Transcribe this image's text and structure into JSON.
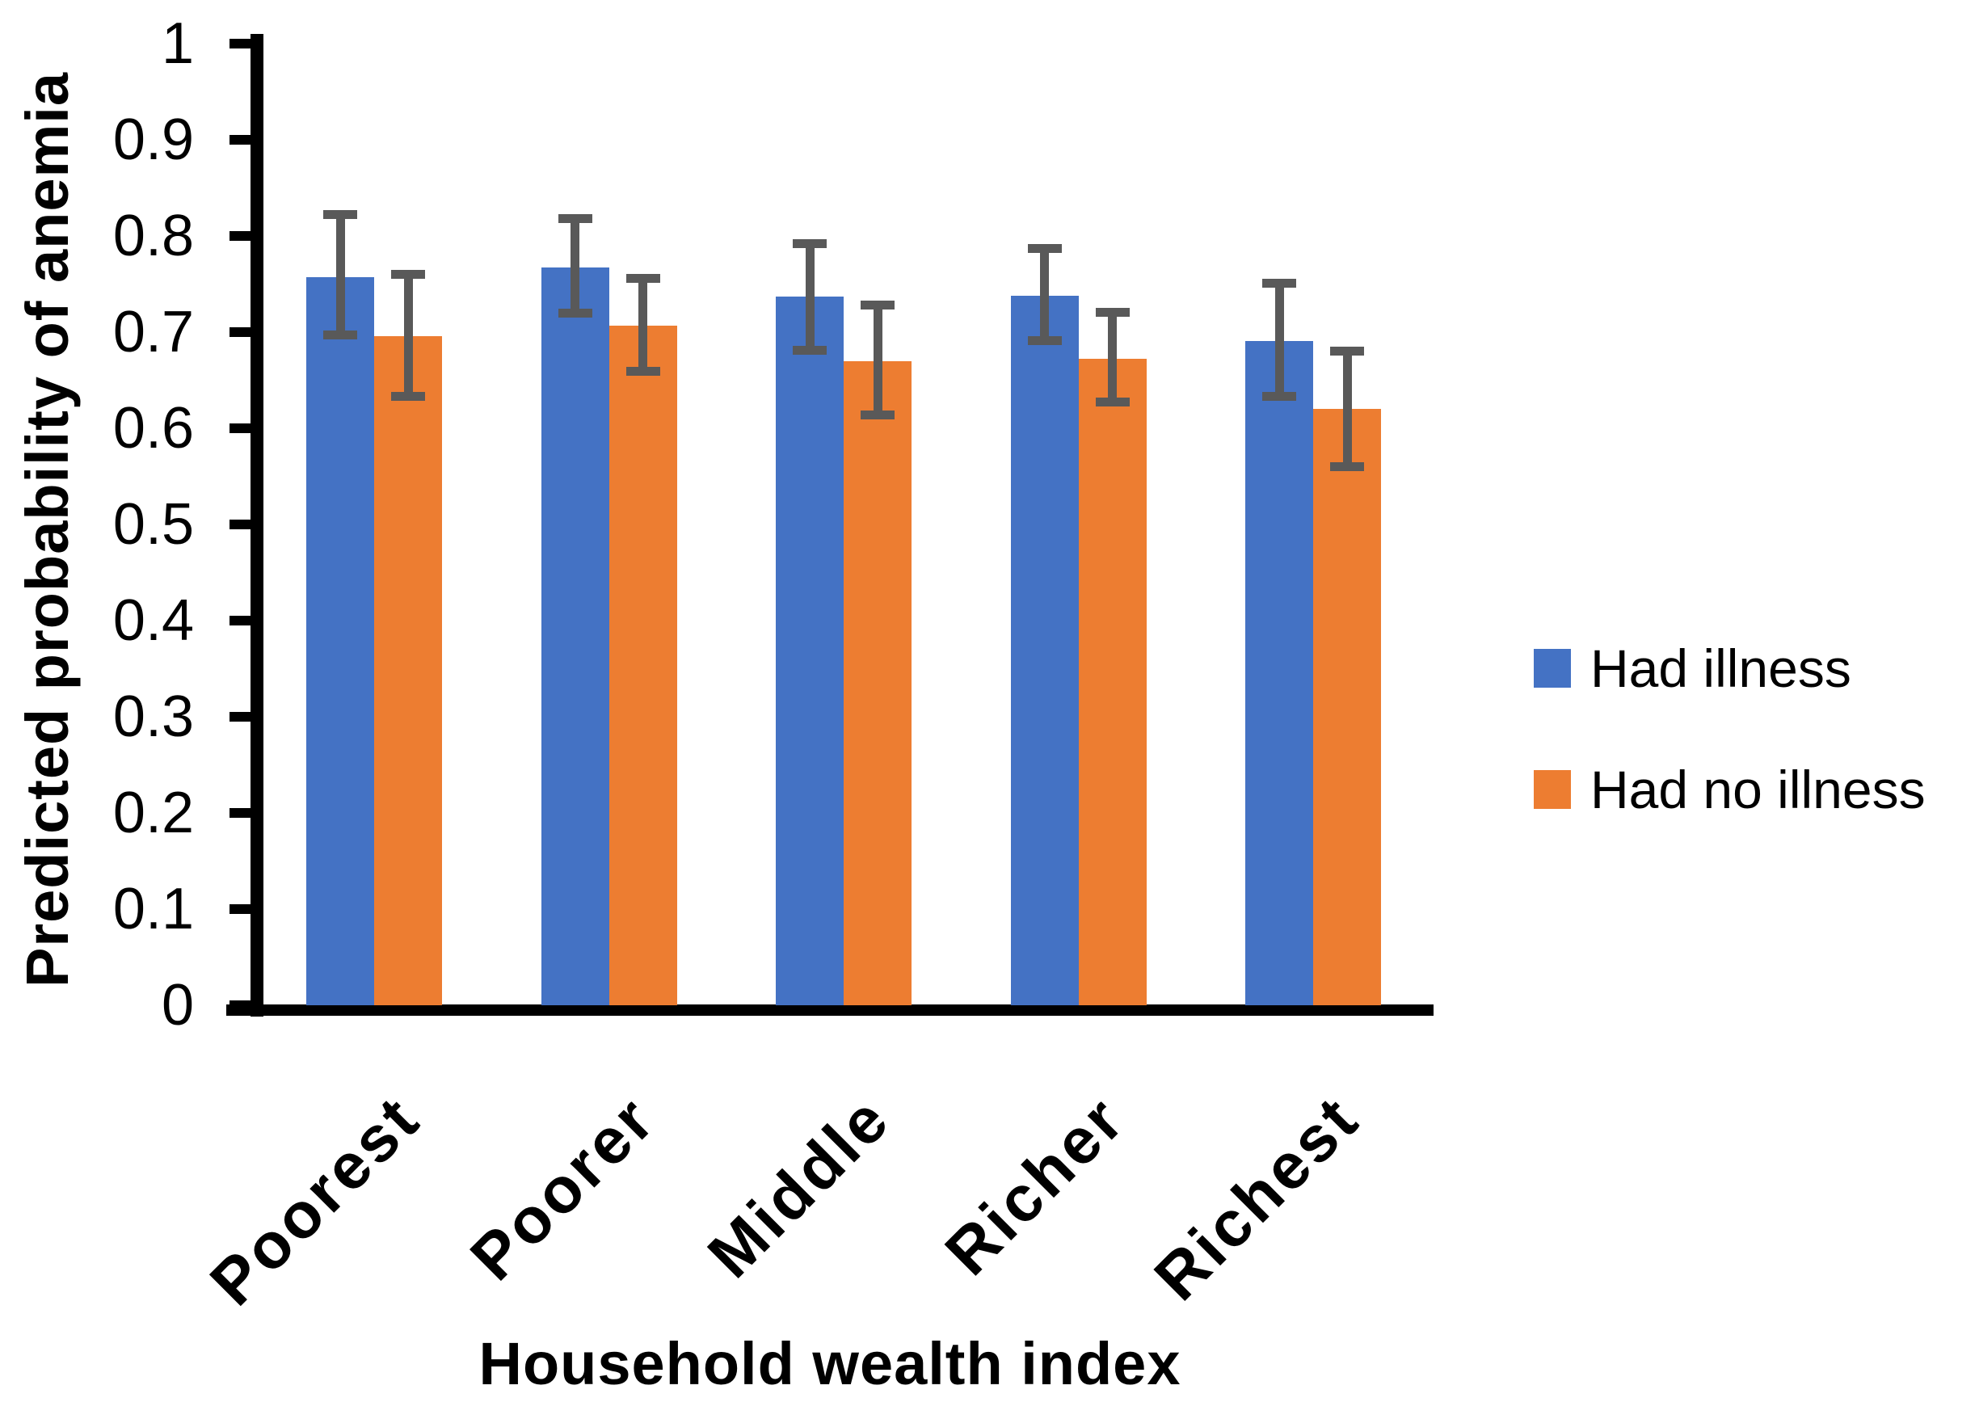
{
  "chart_data": {
    "type": "bar",
    "title": "",
    "xlabel": "Household wealth index",
    "ylabel": "Predicted probability of anemia",
    "categories": [
      "Poorest",
      "Poorer",
      "Middle",
      "Richer",
      "Richest"
    ],
    "series": [
      {
        "name": "Had illness",
        "color": "#4472C4",
        "values": [
          0.757,
          0.767,
          0.737,
          0.738,
          0.691
        ],
        "error_low": [
          0.697,
          0.72,
          0.681,
          0.691,
          0.633
        ],
        "error_high": [
          0.822,
          0.818,
          0.792,
          0.787,
          0.751
        ]
      },
      {
        "name": "Had no illness",
        "color": "#ED7D31",
        "values": [
          0.696,
          0.707,
          0.67,
          0.672,
          0.62
        ],
        "error_low": [
          0.633,
          0.659,
          0.614,
          0.627,
          0.56
        ],
        "error_high": [
          0.76,
          0.756,
          0.728,
          0.721,
          0.68
        ]
      }
    ],
    "ylim": [
      0,
      1
    ],
    "y_ticks": [
      "0",
      "0.1",
      "0.2",
      "0.3",
      "0.4",
      "0.5",
      "0.6",
      "0.7",
      "0.8",
      "0.9",
      "1"
    ],
    "y_tick_step": 0.1,
    "error_bar_color": "#595959",
    "axis_color": "#000000",
    "text_color": "#000000",
    "background": "#FFFFFF",
    "legend_position": "right",
    "grid": false
  }
}
